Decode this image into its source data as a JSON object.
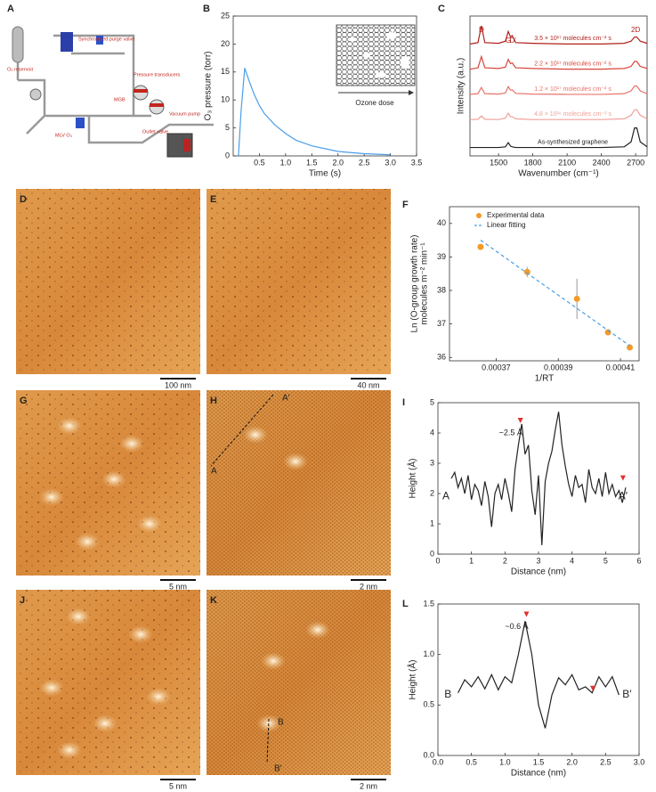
{
  "panel_labels": [
    "A",
    "B",
    "C",
    "D",
    "E",
    "F",
    "G",
    "H",
    "I",
    "J",
    "K",
    "L"
  ],
  "diagram": {
    "labels": [
      "O₃ reservoir",
      "Synchronized purge valve",
      "Pressure transducers",
      "Vacuum pump",
      "MLV O₃",
      "MGB",
      "Outlet valve"
    ]
  },
  "images": [
    {
      "scale_bar": "100 nm"
    },
    {
      "scale_bar": "40 nm"
    },
    {
      "scale_bar": "5 nm"
    },
    {
      "scale_bar": "2 nm",
      "line_labels": [
        "A′",
        "A"
      ]
    },
    {
      "scale_bar": "5 nm"
    },
    {
      "scale_bar": "2 nm",
      "line_labels": [
        "B",
        "B′"
      ]
    }
  ],
  "chart_data": [
    {
      "type": "line",
      "xlabel": "Time (s)",
      "ylabel": "O₃ pressure (torr)",
      "inset_label": "Ozone dose",
      "x": [
        0.1,
        0.15,
        0.22,
        0.3,
        0.4,
        0.5,
        0.6,
        0.8,
        1.0,
        1.2,
        1.5,
        2.0,
        2.5,
        3.0
      ],
      "values": [
        0,
        8,
        15.7,
        13.5,
        11,
        9,
        7.5,
        5.5,
        4,
        2.8,
        1.8,
        0.8,
        0.4,
        0.2
      ],
      "color": "#4a9ee8",
      "xlim": [
        0,
        3.5
      ],
      "xticks": [
        0.5,
        {
          "value": 1,
          "label": "1.0"
        },
        1.5,
        {
          "value": 2,
          "label": "2.0"
        },
        2.5,
        {
          "value": 3,
          "label": "3.0"
        },
        3.5
      ],
      "ylim": [
        0,
        25
      ],
      "yticks": [
        0,
        5,
        10,
        15,
        20,
        25
      ]
    },
    {
      "type": "line",
      "xlabel": "Wavenumber (cm⁻¹)",
      "ylabel": "Intensity (a.u.)",
      "peak_labels": [
        "D",
        "G",
        "D′",
        "2D"
      ],
      "x": [
        1250,
        1320,
        1350,
        1380,
        1500,
        1560,
        1585,
        1605,
        1620,
        1650,
        1800,
        2100,
        2400,
        2600,
        2660,
        2690,
        2710,
        2740,
        2800
      ],
      "series": [
        {
          "name": "3.5 × 10¹⁷ molecules cm⁻² s",
          "color": "#b0201a",
          "values": [
            8,
            8.1,
            9.3,
            8.1,
            8.05,
            8.2,
            8.9,
            8.5,
            8.6,
            8.1,
            8.05,
            8,
            8,
            8.05,
            8.2,
            8.5,
            8.5,
            8.2,
            8.05
          ]
        },
        {
          "name": "2.2 × 10¹⁷ molecules cm⁻² s",
          "color": "#d8453a",
          "values": [
            6.2,
            6.3,
            7.1,
            6.3,
            6.25,
            6.35,
            6.9,
            6.6,
            6.65,
            6.3,
            6.25,
            6.2,
            6.2,
            6.25,
            6.4,
            6.75,
            6.75,
            6.4,
            6.25
          ]
        },
        {
          "name": "1.2 × 10¹⁷ molecules cm⁻² s",
          "color": "#e8736a",
          "values": [
            4.4,
            4.45,
            4.9,
            4.45,
            4.42,
            4.5,
            4.95,
            4.7,
            4.72,
            4.47,
            4.42,
            4.4,
            4.4,
            4.45,
            4.65,
            5.0,
            5.0,
            4.65,
            4.45
          ]
        },
        {
          "name": "4.8 × 10¹⁶ molecules cm⁻² s",
          "color": "#f0a09a",
          "values": [
            2.6,
            2.62,
            2.85,
            2.62,
            2.6,
            2.7,
            3.05,
            2.8,
            2.8,
            2.65,
            2.6,
            2.6,
            2.6,
            2.65,
            2.9,
            3.3,
            3.3,
            2.9,
            2.65
          ]
        },
        {
          "name": "As-synthesized graphene",
          "color": "#222222",
          "values": [
            0.6,
            0.6,
            0.6,
            0.6,
            0.6,
            0.65,
            0.95,
            0.7,
            0.65,
            0.6,
            0.6,
            0.6,
            0.6,
            0.65,
            1.0,
            2.0,
            2.0,
            1.0,
            0.65
          ]
        }
      ],
      "xlim": [
        1250,
        2800
      ],
      "xticks": [
        1500,
        1800,
        2100,
        2400,
        2700
      ],
      "ylim": [
        0,
        10
      ]
    },
    {
      "type": "scatter",
      "xlabel": "1/RT",
      "ylabel": [
        "Ln (O-group growth rate)",
        "molecules m⁻² min⁻¹"
      ],
      "series": [
        {
          "name": "Experimental data",
          "color": "#f39a2a",
          "x": [
            0.000365,
            0.00038,
            0.000396,
            0.000406,
            0.000413
          ],
          "values": [
            39.3,
            38.55,
            37.75,
            36.75,
            36.3
          ],
          "errors": [
            0.05,
            0.15,
            0.6,
            0.05,
            0.05
          ]
        },
        {
          "name": "Linear fitting",
          "type": "line",
          "line_style": "dashed",
          "color": "#4a9ee8",
          "x": [
            0.000365,
            0.000413
          ],
          "values": [
            39.5,
            36.35
          ]
        }
      ],
      "xlim": [
        0.000355,
        0.000416
      ],
      "xticks": [
        0.00037,
        0.00039,
        0.00041
      ],
      "ylim": [
        35.9,
        40.5
      ],
      "yticks": [
        36,
        37,
        38,
        39,
        40
      ],
      "legend": "upper right"
    },
    {
      "type": "line",
      "xlabel": "Distance (nm)",
      "ylabel": "Height (Å)",
      "annotations": [
        "~2.5 Å",
        "A",
        "A′"
      ],
      "x": [
        0.4,
        0.5,
        0.6,
        0.7,
        0.8,
        0.9,
        1.0,
        1.1,
        1.2,
        1.3,
        1.4,
        1.5,
        1.6,
        1.7,
        1.8,
        1.9,
        2.0,
        2.1,
        2.2,
        2.3,
        2.4,
        2.5,
        2.6,
        2.7,
        2.8,
        2.9,
        3.0,
        3.1,
        3.2,
        3.3,
        3.4,
        3.5,
        3.6,
        3.7,
        3.8,
        3.9,
        4.0,
        4.1,
        4.2,
        4.3,
        4.4,
        4.5,
        4.6,
        4.7,
        4.8,
        4.9,
        5.0,
        5.1,
        5.2,
        5.3,
        5.4,
        5.5,
        5.6
      ],
      "values": [
        2.5,
        2.7,
        2.2,
        2.5,
        2.0,
        2.6,
        1.8,
        2.3,
        2.1,
        1.6,
        2.4,
        1.9,
        0.9,
        2.0,
        2.3,
        1.8,
        2.5,
        2.0,
        1.4,
        2.8,
        3.6,
        4.3,
        3.3,
        3.6,
        2.1,
        1.3,
        2.6,
        0.3,
        2.4,
        3.0,
        3.4,
        4.1,
        4.7,
        3.6,
        2.9,
        2.3,
        1.9,
        2.6,
        2.2,
        2.3,
        1.7,
        2.8,
        2.2,
        2.0,
        2.5,
        1.9,
        2.7,
        2.0,
        2.3,
        1.9,
        2.1,
        1.7,
        2.2
      ],
      "color": "#222222",
      "xlim": [
        0,
        6
      ],
      "xticks": [
        0,
        1,
        2,
        3,
        4,
        5,
        6
      ],
      "ylim": [
        0,
        5
      ],
      "yticks": [
        0,
        1,
        2,
        3,
        4,
        5
      ]
    },
    {
      "type": "line",
      "xlabel": "Distance (nm)",
      "ylabel": "Height (Å)",
      "annotations": [
        "~0.6 Å",
        "B",
        "B′"
      ],
      "x": [
        0.3,
        0.4,
        0.5,
        0.6,
        0.7,
        0.8,
        0.9,
        1.0,
        1.1,
        1.2,
        1.3,
        1.4,
        1.5,
        1.6,
        1.7,
        1.8,
        1.9,
        2.0,
        2.1,
        2.2,
        2.3,
        2.4,
        2.5,
        2.6,
        2.7
      ],
      "values": [
        0.62,
        0.75,
        0.68,
        0.78,
        0.66,
        0.8,
        0.65,
        0.78,
        0.72,
        1.0,
        1.33,
        1.0,
        0.5,
        0.27,
        0.6,
        0.77,
        0.7,
        0.8,
        0.65,
        0.68,
        0.62,
        0.78,
        0.68,
        0.78,
        0.6
      ],
      "color": "#222222",
      "xlim": [
        0,
        3
      ],
      "xticks": [
        {
          "value": 0,
          "label": "0.0"
        },
        0.5,
        {
          "value": 1,
          "label": "1.0"
        },
        1.5,
        {
          "value": 2,
          "label": "2.0"
        },
        2.5,
        {
          "value": 3,
          "label": "3.0"
        }
      ],
      "ylim": [
        0,
        1.5
      ],
      "yticks": [
        {
          "value": 0,
          "label": "0.0"
        },
        0.5,
        {
          "value": 1,
          "label": "1.0"
        },
        1.5
      ]
    }
  ]
}
